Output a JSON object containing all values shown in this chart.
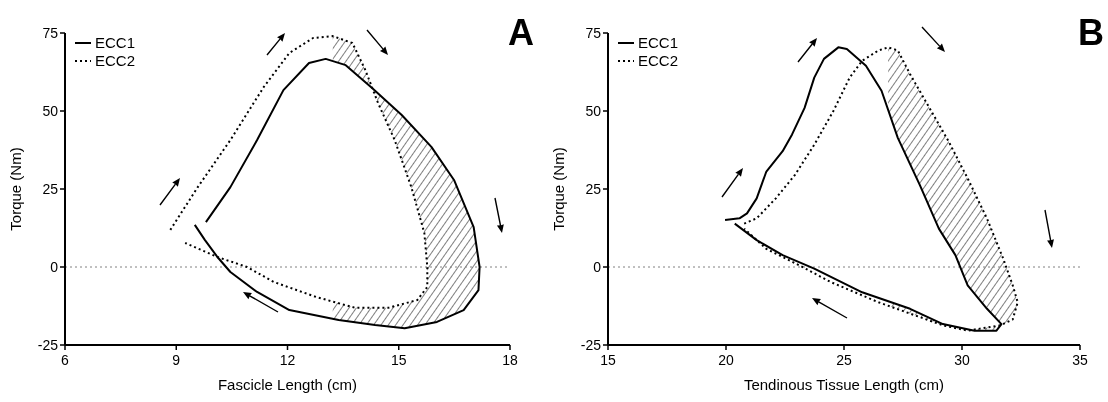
{
  "chart_data": [
    {
      "type": "line",
      "title": "A",
      "xlabel": "Fascicle Length (cm)",
      "ylabel": "Torque (Nm)",
      "xlim": [
        6,
        18
      ],
      "xticks": [
        6,
        9,
        12,
        15,
        18
      ],
      "ylim": [
        -25,
        75
      ],
      "yticks": [
        -25,
        0,
        25,
        50,
        75
      ],
      "grid": false,
      "legend": "top left",
      "marker": "none",
      "ref_lines": [
        {
          "axis": "y",
          "value": 0,
          "color": "#808080",
          "line_style": "dotted"
        }
      ],
      "series": [
        {
          "name": "ECC1",
          "color": "#000000",
          "line_style": "solid",
          "x": [
            9.8,
            10.46,
            11.18,
            11.89,
            12.58,
            13.03,
            13.57,
            14.28,
            15.08,
            15.88,
            16.49,
            17.02,
            17.18,
            17.15,
            16.75,
            16.03,
            15.16,
            14.36,
            13.38,
            12.05,
            11.18,
            10.46,
            10.11,
            9.77,
            9.5
          ],
          "values": [
            14.4,
            25.6,
            40.7,
            56.7,
            65.4,
            66.7,
            64.7,
            57.4,
            48.7,
            38.5,
            27.9,
            12.8,
            0,
            -7.4,
            -13.8,
            -17.6,
            -19.6,
            -18.6,
            -17,
            -13.8,
            -8,
            -1.6,
            3.2,
            8.7,
            13.5
          ]
        },
        {
          "name": "ECC2",
          "color": "#000000",
          "line_style": "dotted",
          "x": [
            8.84,
            9.58,
            10.46,
            11.36,
            12.05,
            12.69,
            13.22,
            13.75,
            14.1,
            14.44,
            14.89,
            15.34,
            15.69,
            15.77,
            15.77,
            15.5,
            14.71,
            13.83,
            12.77,
            11.63,
            10.91,
            10.11,
            9.24
          ],
          "values": [
            11.9,
            25.6,
            40.7,
            57.7,
            68.6,
            73.4,
            74,
            71.8,
            63.1,
            52.6,
            40.7,
            25.6,
            10.9,
            0,
            -6.4,
            -10.6,
            -13.1,
            -13.1,
            -9.6,
            -4.8,
            0,
            3.2,
            7.7
          ]
        }
      ]
    },
    {
      "type": "line",
      "title": "B",
      "xlabel": "Tendinous Tissue Length (cm)",
      "ylabel": "Torque (Nm)",
      "xlim": [
        15,
        35
      ],
      "xticks": [
        15,
        20,
        25,
        30,
        35
      ],
      "ylim": [
        -25,
        75
      ],
      "yticks": [
        -25,
        0,
        25,
        50,
        75
      ],
      "grid": false,
      "legend": "top left",
      "marker": "none",
      "ref_lines": [
        {
          "axis": "y",
          "value": 0,
          "color": "#808080",
          "line_style": "dotted"
        }
      ],
      "series": [
        {
          "name": "ECC1",
          "color": "#000000",
          "line_style": "solid",
          "x": [
            19.96,
            20.57,
            20.89,
            21.3,
            21.71,
            22.4,
            22.8,
            23.33,
            23.74,
            24.15,
            24.76,
            25.12,
            25.93,
            26.59,
            27.28,
            28.21,
            29.02,
            29.72,
            30.24,
            31.06,
            31.67,
            31.46,
            30.53,
            29.19,
            27.8,
            25.77,
            23.74,
            22.4,
            21.3,
            20.37
          ],
          "values": [
            15.1,
            15.6,
            17.2,
            22,
            30.6,
            37.1,
            42.5,
            51,
            60.7,
            66.7,
            70.4,
            69.9,
            64.5,
            56.5,
            41.4,
            26.3,
            12.3,
            3.8,
            -5.9,
            -13.4,
            -18.3,
            -20.4,
            -20.4,
            -18.3,
            -13.4,
            -8.1,
            -0.5,
            3.8,
            8.6,
            13.9
          ]
        },
        {
          "name": "ECC2",
          "color": "#000000",
          "line_style": "dotted",
          "x": [
            20.77,
            21.3,
            22.11,
            22.93,
            23.74,
            24.55,
            25.24,
            25.77,
            26.46,
            26.87,
            27.28,
            27.8,
            28.62,
            29.43,
            30.24,
            31.06,
            31.75,
            32.15,
            32.36,
            32.15,
            31.63,
            30.24,
            29.19,
            26.46,
            24.43,
            23.09,
            21.71,
            20.77
          ],
          "values": [
            13.9,
            15.6,
            22,
            29.6,
            39.2,
            50,
            60.7,
            66.1,
            69.4,
            70.4,
            69.4,
            61.8,
            51,
            40.3,
            28.4,
            15.5,
            2.6,
            -5.9,
            -11.3,
            -16.8,
            -18.7,
            -20.4,
            -18.7,
            -11.3,
            -4.8,
            0.6,
            5.8,
            12.3
          ]
        }
      ]
    }
  ]
}
